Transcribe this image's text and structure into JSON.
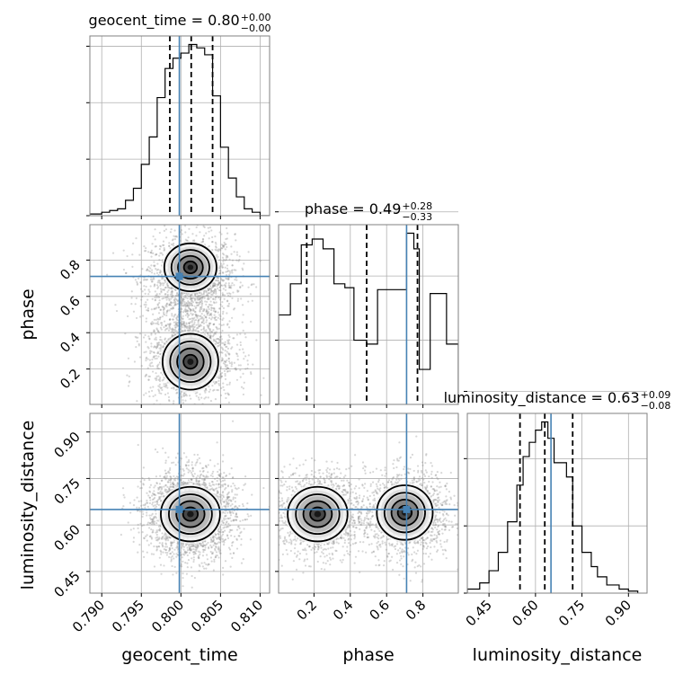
{
  "chart_data": {
    "type": "corner",
    "truth_color": "#4682b4",
    "parameters": [
      {
        "name": "geocent_time",
        "title_prefix": "geocent_time = ",
        "median": "0.80",
        "err_plus": "+0.00",
        "err_minus": "−0.00",
        "range": [
          0.7885,
          0.8112
        ],
        "ticks": [
          0.79,
          0.795,
          0.8,
          0.805,
          0.81
        ],
        "tick_labels": [
          "0.790",
          "0.795",
          "0.800",
          "0.805",
          "0.810"
        ],
        "quantiles": [
          0.7986,
          0.8013,
          0.804
        ],
        "truth": 0.7998,
        "hist_edges": [
          0.7885,
          0.79,
          0.791,
          0.792,
          0.793,
          0.794,
          0.795,
          0.796,
          0.797,
          0.798,
          0.799,
          0.8,
          0.801,
          0.802,
          0.803,
          0.804,
          0.805,
          0.806,
          0.807,
          0.808,
          0.809,
          0.81,
          0.8112
        ],
        "hist_counts": [
          1,
          2,
          3,
          4,
          9,
          16,
          30,
          46,
          69,
          86,
          92,
          95,
          100,
          98,
          94,
          70,
          40,
          22,
          11,
          4,
          2,
          0
        ]
      },
      {
        "name": "phase",
        "title_prefix": "phase = ",
        "median": "0.49",
        "err_plus": "+0.28",
        "err_minus": "−0.33",
        "range": [
          0.005,
          0.995
        ],
        "ticks": [
          0.2,
          0.4,
          0.6,
          0.8
        ],
        "tick_labels": [
          "0.2",
          "0.4",
          "0.6",
          "0.8"
        ],
        "quantiles": [
          0.16,
          0.49,
          0.77
        ],
        "truth": 0.71,
        "hist_edges": [
          0.005,
          0.07,
          0.13,
          0.19,
          0.25,
          0.31,
          0.37,
          0.42,
          0.49,
          0.55,
          0.64,
          0.71,
          0.75,
          0.78,
          0.84,
          0.93,
          0.995
        ],
        "hist_counts": [
          46,
          62,
          82,
          85,
          80,
          62,
          60,
          33,
          31,
          59,
          59,
          88,
          80,
          18,
          57,
          31
        ]
      },
      {
        "name": "luminosity_distance",
        "title_prefix": "luminosity_distance = ",
        "median": "0.63",
        "err_plus": "+0.09",
        "err_minus": "−0.08",
        "range": [
          0.38,
          0.96
        ],
        "ticks": [
          0.45,
          0.6,
          0.75,
          0.9
        ],
        "tick_labels": [
          "0.45",
          "0.60",
          "0.75",
          "0.90"
        ],
        "quantiles": [
          0.55,
          0.63,
          0.72
        ],
        "truth": 0.65,
        "hist_edges": [
          0.38,
          0.42,
          0.45,
          0.48,
          0.51,
          0.54,
          0.56,
          0.58,
          0.6,
          0.62,
          0.64,
          0.66,
          0.7,
          0.72,
          0.75,
          0.78,
          0.8,
          0.83,
          0.87,
          0.9,
          0.93
        ],
        "hist_counts": [
          2,
          5,
          11,
          20,
          35,
          53,
          67,
          74,
          80,
          84,
          76,
          64,
          57,
          33,
          20,
          13,
          8,
          4,
          2,
          1
        ]
      }
    ],
    "hist_y_ticks": [
      0,
      33,
      66,
      99
    ],
    "grid": true
  }
}
